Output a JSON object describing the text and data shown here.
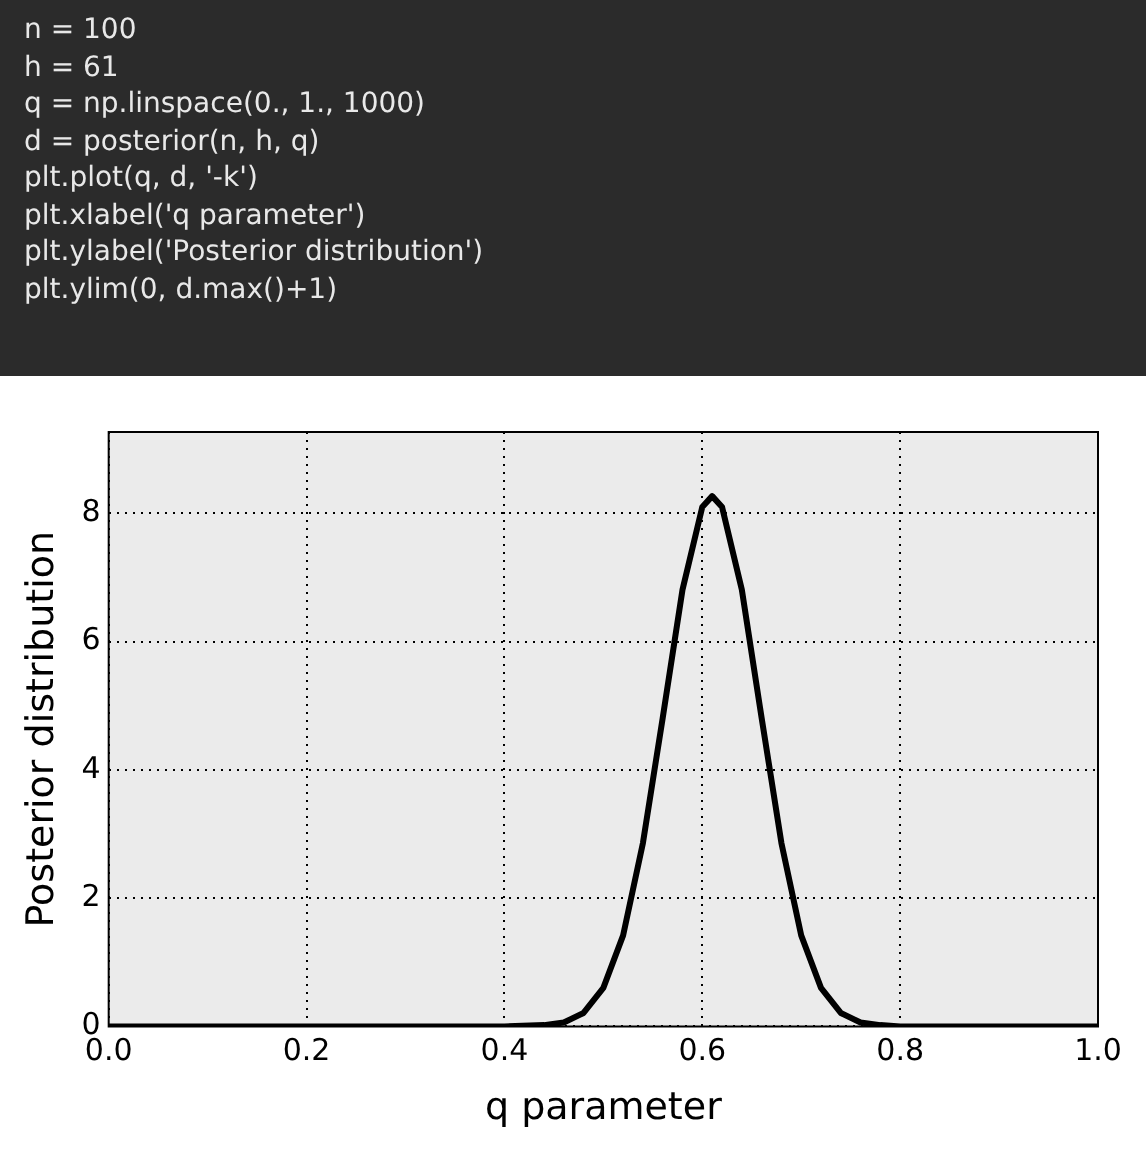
{
  "chart_data": {
    "type": "line",
    "xlabel": "q parameter",
    "ylabel": "Posterior distribution",
    "annotations": [
      "n = 100",
      "h = 61",
      "q = np.linspace(0., 1., 1000)",
      "d = posterior(n, h, q)",
      "plt.plot(q, d, '-k')",
      "plt.xlabel('q parameter')",
      "plt.ylabel('Posterior distribution')",
      "plt.ylim(0, d.max()+1)"
    ],
    "series": [
      {
        "color": "#000000",
        "x": [
          0,
          0.4,
          0.44,
          0.46,
          0.48,
          0.5,
          0.52,
          0.54,
          0.56,
          0.58,
          0.6,
          0.61,
          0.62,
          0.64,
          0.66,
          0.68,
          0.7,
          0.72,
          0.74,
          0.76,
          0.78,
          0.8,
          1
        ],
        "values": [
          0,
          0,
          0.02,
          0.06,
          0.21,
          0.6,
          1.42,
          2.86,
          4.81,
          6.81,
          8.1,
          8.27,
          8.1,
          6.81,
          4.81,
          2.86,
          1.42,
          0.6,
          0.21,
          0.06,
          0.02,
          0,
          0
        ]
      }
    ],
    "xlim": [
      0,
      1
    ],
    "xticks": [
      {
        "value": 0,
        "label": "0.0"
      },
      0.2,
      0.4,
      0.6,
      0.8,
      {
        "value": 1,
        "label": "1.0"
      }
    ],
    "ylim": [
      0,
      9.27
    ],
    "yticks": [
      0,
      2,
      4,
      6,
      8
    ],
    "grid": true,
    "legend": false,
    "marker": "none",
    "line_style": "solid"
  }
}
